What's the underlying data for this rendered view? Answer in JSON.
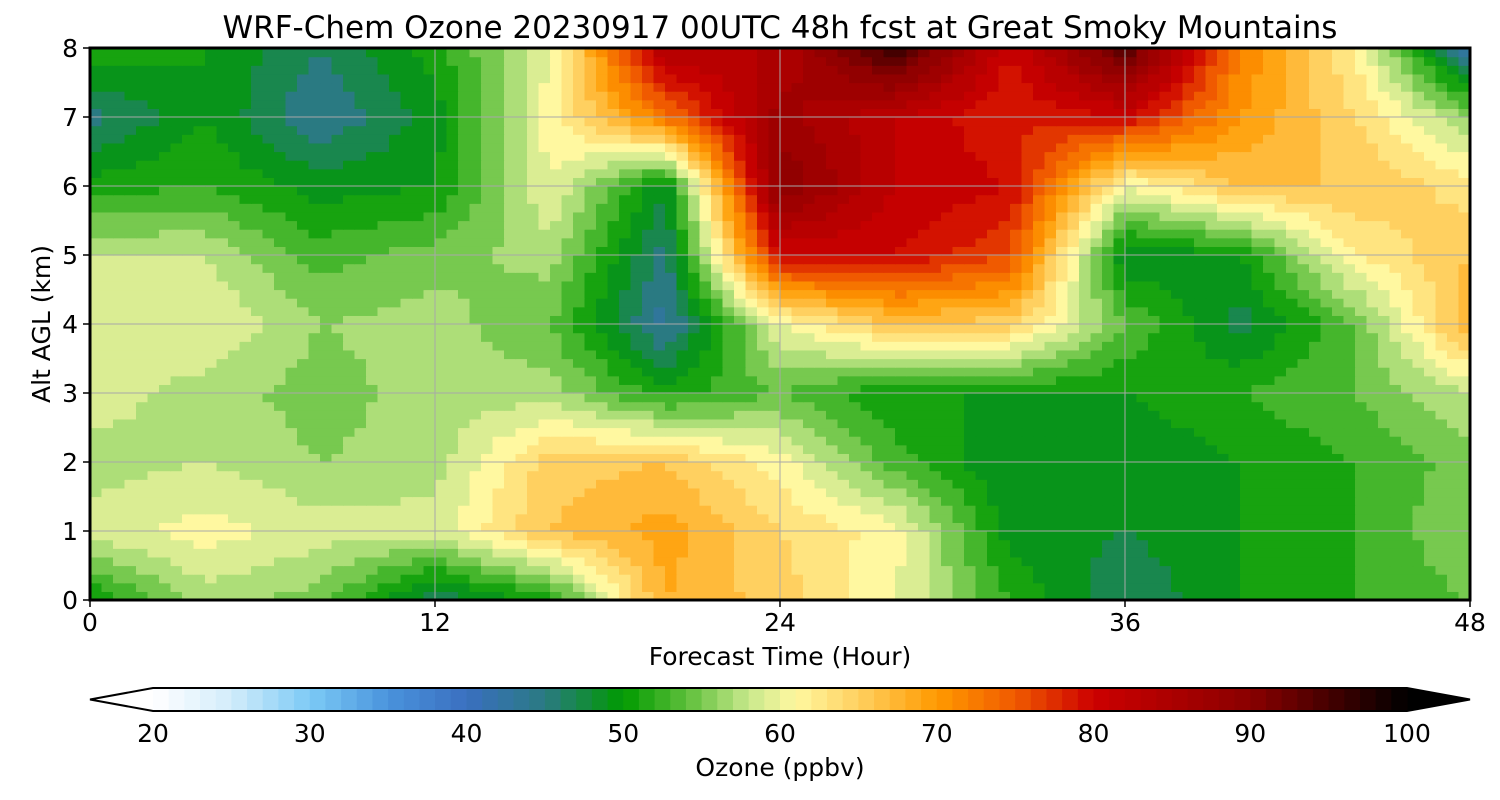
{
  "chart_data": {
    "type": "heatmap",
    "title": "WRF-Chem Ozone  20230917 00UTC 48h fcst at Great Smoky Mountains",
    "xlabel": "Forecast Time (Hour)",
    "ylabel": "Alt AGL (km)",
    "xlim": [
      0,
      48
    ],
    "ylim": [
      0,
      8
    ],
    "xticks": [
      0,
      12,
      24,
      36,
      48
    ],
    "yticks": [
      0,
      1,
      2,
      3,
      4,
      5,
      6,
      7,
      8
    ],
    "grid": true,
    "colorbar": {
      "label": "Ozone  (ppbv)",
      "min": 20,
      "max": 100,
      "extend": "both",
      "ticks": [
        20,
        30,
        40,
        50,
        60,
        70,
        80,
        90,
        100
      ]
    },
    "x": [
      0,
      4,
      8,
      12,
      16,
      20,
      24,
      28,
      32,
      36,
      40,
      44,
      48
    ],
    "y": [
      0,
      1,
      2,
      3,
      4,
      5,
      6,
      7,
      8
    ],
    "z": [
      [
        50,
        57,
        55,
        46,
        51,
        68,
        65,
        60,
        52,
        46,
        50,
        52,
        54
      ],
      [
        59,
        61,
        59,
        59,
        66,
        69,
        64,
        61,
        49,
        48,
        50,
        52,
        56
      ],
      [
        57,
        58,
        56,
        57,
        65,
        66,
        61,
        53,
        48,
        48,
        50,
        52,
        55
      ],
      [
        59,
        57,
        55,
        57,
        57,
        51,
        54,
        50,
        50,
        50,
        52,
        54,
        58
      ],
      [
        60,
        60,
        56,
        57,
        54,
        43,
        60,
        66,
        65,
        54,
        47,
        54,
        68
      ],
      [
        58,
        58,
        53,
        55,
        57,
        45,
        80,
        80,
        76,
        48,
        50,
        62,
        66
      ],
      [
        51,
        52,
        49,
        50,
        60,
        48,
        90,
        82,
        80,
        60,
        66,
        66,
        63
      ],
      [
        45,
        50,
        44,
        49,
        61,
        73,
        87,
        82,
        78,
        80,
        70,
        64,
        56
      ],
      [
        52,
        50,
        46,
        51,
        60,
        84,
        84,
        96,
        80,
        94,
        72,
        62,
        42
      ]
    ]
  }
}
